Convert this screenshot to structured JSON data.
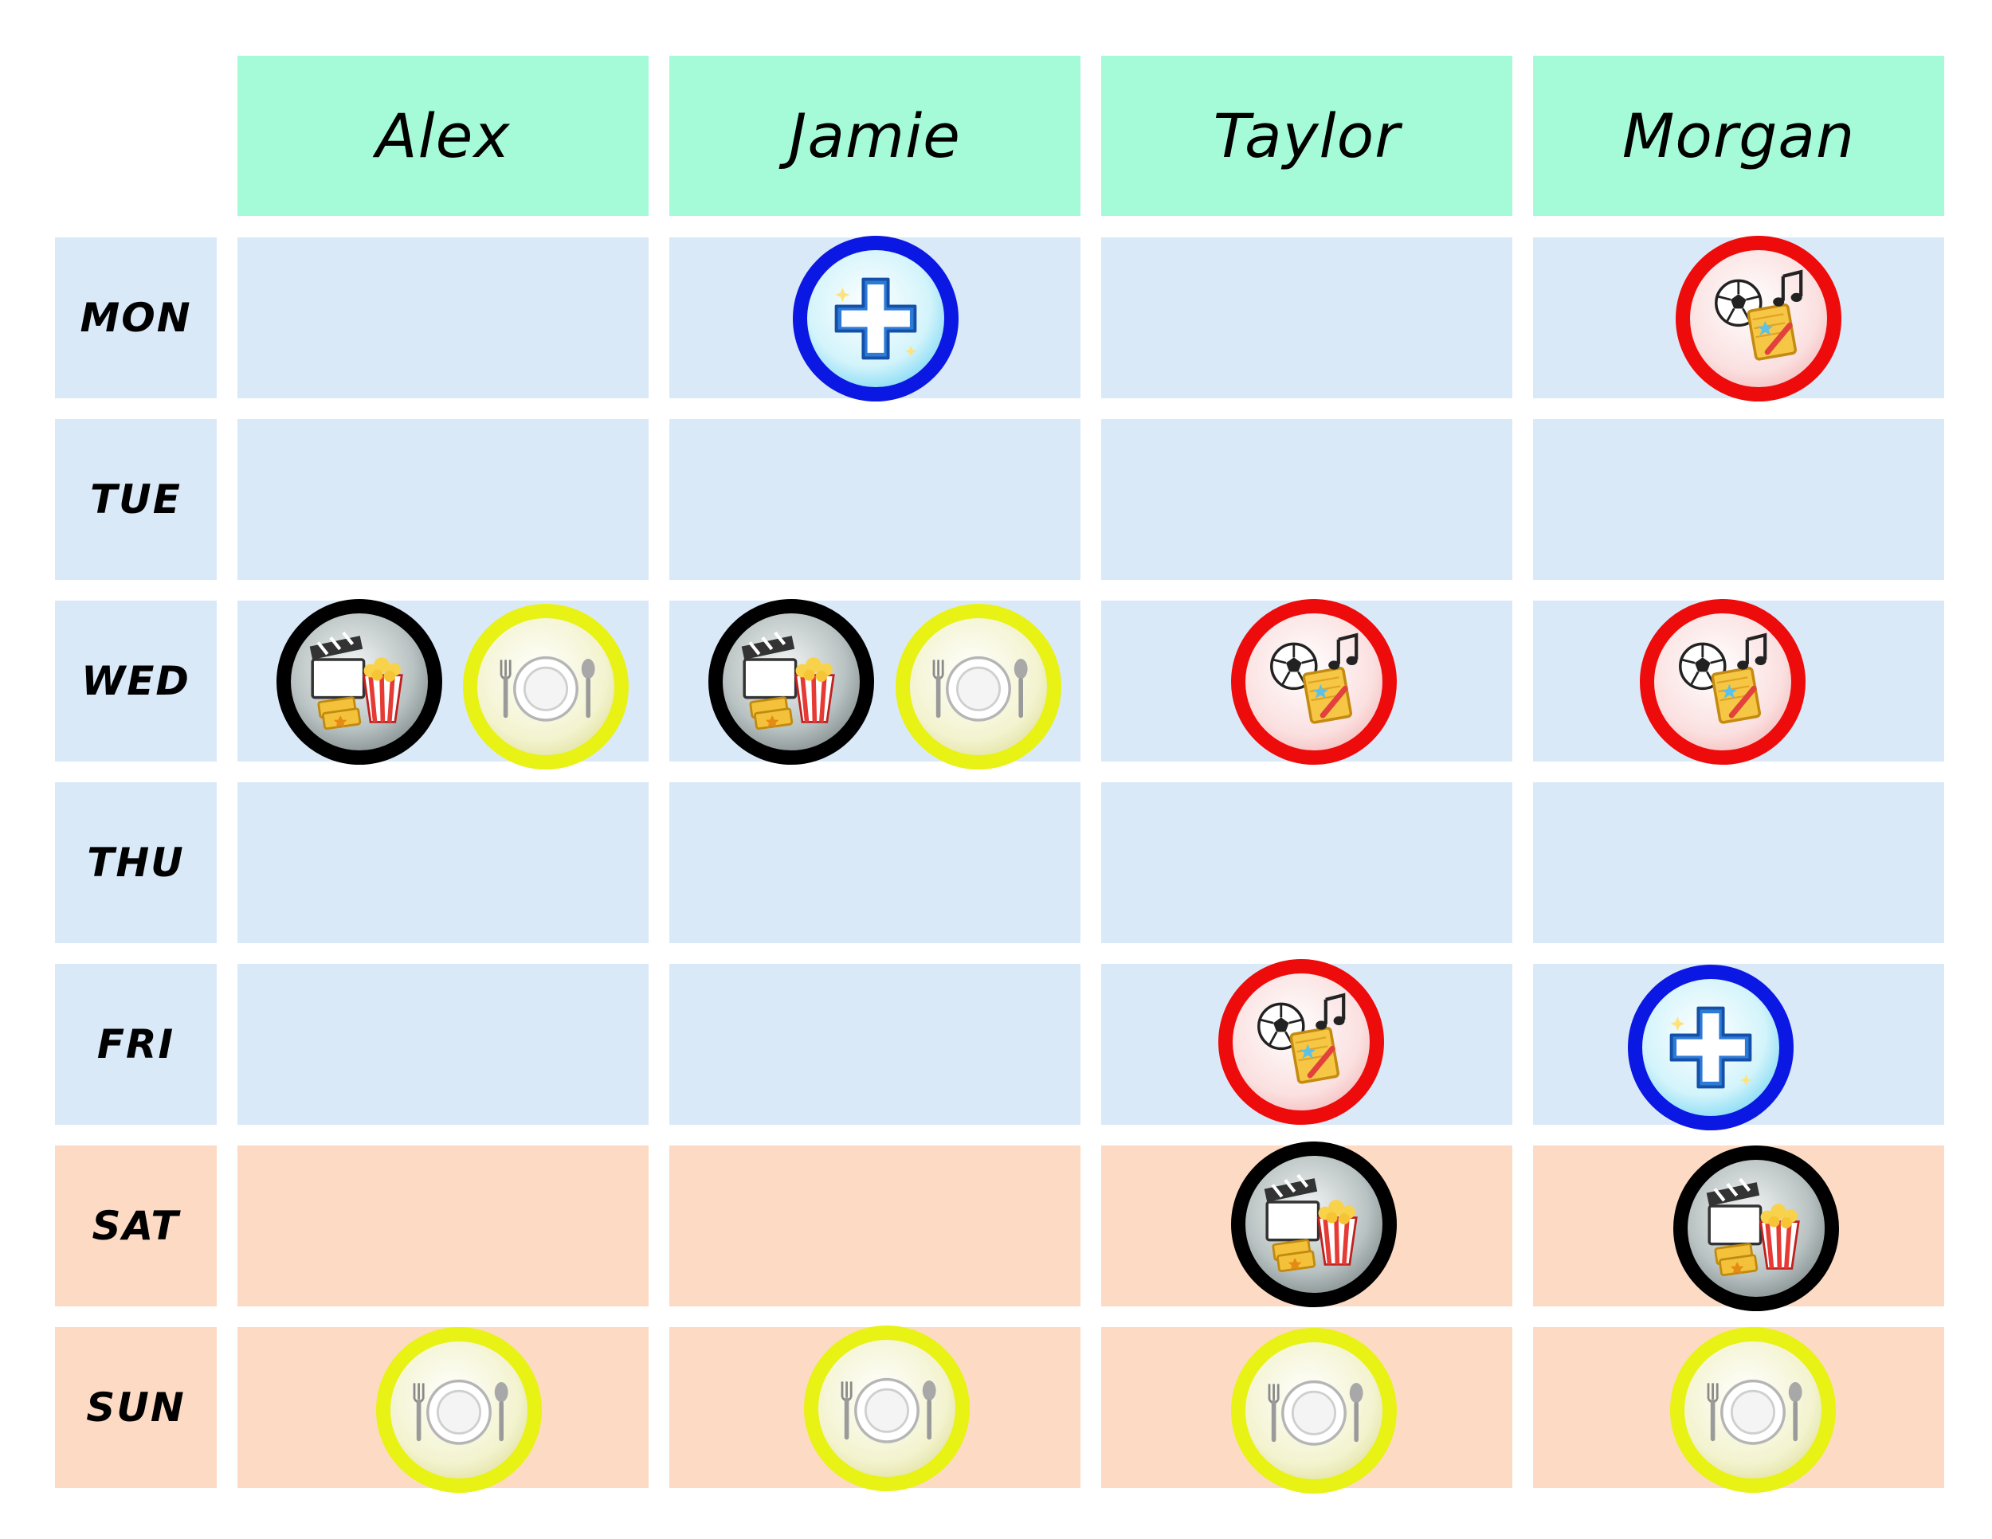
{
  "people": [
    "Alex",
    "Jamie",
    "Taylor",
    "Morgan"
  ],
  "days": [
    "MON",
    "TUE",
    "WED",
    "THU",
    "FRI",
    "SAT",
    "SUN"
  ],
  "colors": {
    "header_bg": "#a5fad8",
    "weekday_bg": "#dae9f8",
    "weekend_bg": "#fddac3",
    "entertainment_ring": "#000000",
    "dining_ring": "#e8f214",
    "activities_ring": "#ee0b0b",
    "medical_ring": "#0b18e3"
  },
  "icons": {
    "entertainment": "movie-popcorn-tickets-icon",
    "dining": "plate-fork-spoon-icon",
    "activities": "soccer-notebook-music-icon",
    "medical": "medical-cross-icon"
  },
  "schedule": {
    "MON": {
      "Alex": [],
      "Jamie": [
        "medical"
      ],
      "Taylor": [],
      "Morgan": [
        "activities"
      ]
    },
    "TUE": {
      "Alex": [],
      "Jamie": [],
      "Taylor": [],
      "Morgan": []
    },
    "WED": {
      "Alex": [
        "entertainment",
        "dining"
      ],
      "Jamie": [
        "entertainment",
        "dining"
      ],
      "Taylor": [
        "activities"
      ],
      "Morgan": [
        "activities"
      ]
    },
    "THU": {
      "Alex": [],
      "Jamie": [],
      "Taylor": [],
      "Morgan": []
    },
    "FRI": {
      "Alex": [],
      "Jamie": [],
      "Taylor": [
        "activities"
      ],
      "Morgan": [
        "medical"
      ]
    },
    "SAT": {
      "Alex": [],
      "Jamie": [],
      "Taylor": [
        "entertainment"
      ],
      "Morgan": [
        "entertainment"
      ]
    },
    "SUN": {
      "Alex": [
        "dining"
      ],
      "Jamie": [
        "dining"
      ],
      "Taylor": [
        "dining"
      ],
      "Morgan": [
        "dining"
      ]
    }
  }
}
